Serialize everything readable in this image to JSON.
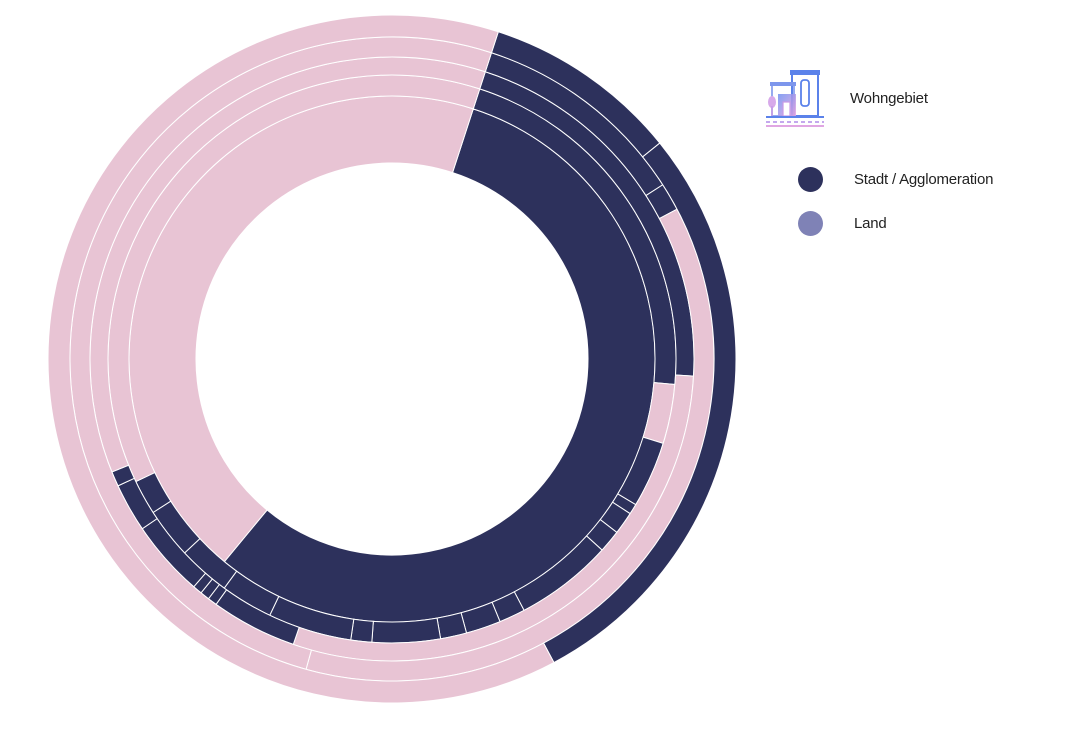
{
  "colors": {
    "dark": "#2d315c",
    "pink": "#e8c4d4",
    "land": "#7f82b6",
    "separator": "#ffffff"
  },
  "legend": {
    "title": "Wohngebiet",
    "icon": "city-buildings-icon",
    "items": [
      {
        "label": "Stadt / Agglomeration",
        "color": "#2d315c"
      },
      {
        "label": "Land",
        "color": "#7f82b6"
      }
    ]
  },
  "chart_data": {
    "type": "sunburst",
    "legend_position": "top-right",
    "rings": [
      {
        "segments": [
          {
            "value": 56.0,
            "color": "dark"
          },
          {
            "value": 44.0,
            "color": "pink"
          }
        ]
      },
      {
        "segments": [
          {
            "value": 21.6,
            "color": "dark"
          },
          {
            "value": 3.4,
            "color": "pink"
          },
          {
            "value": 3.8,
            "color": "dark"
          },
          {
            "value": 0.6,
            "color": "dark"
          },
          {
            "value": 1.3,
            "color": "dark"
          },
          {
            "value": 1.3,
            "color": "dark"
          },
          {
            "value": 5.6,
            "color": "dark"
          },
          {
            "value": 1.5,
            "color": "dark"
          },
          {
            "value": 2.0,
            "color": "dark"
          },
          {
            "value": 1.5,
            "color": "dark"
          },
          {
            "value": 3.9,
            "color": "dark"
          },
          {
            "value": 1.2,
            "color": "dark"
          },
          {
            "value": 4.8,
            "color": "dark"
          },
          {
            "value": 3.0,
            "color": "dark"
          },
          {
            "value": 3.0,
            "color": "dark"
          },
          {
            "value": 2.9,
            "color": "dark"
          },
          {
            "value": 2.0,
            "color": "dark"
          },
          {
            "value": 37.4,
            "color": "pink"
          }
        ]
      },
      {
        "segments": [
          {
            "value": 20.9,
            "color": "dark"
          },
          {
            "value": 29.4,
            "color": "pink"
          },
          {
            "value": 4.6,
            "color": "dark"
          },
          {
            "value": 0.5,
            "color": "dark"
          },
          {
            "value": 0.5,
            "color": "dark"
          },
          {
            "value": 0.5,
            "color": "dark"
          },
          {
            "value": 4.1,
            "color": "dark"
          },
          {
            "value": 2.6,
            "color": "dark"
          },
          {
            "value": 0.8,
            "color": "dark"
          },
          {
            "value": 36.1,
            "color": "pink"
          }
        ]
      },
      {
        "segments": [
          {
            "value": 10.9,
            "color": "dark"
          },
          {
            "value": 1.4,
            "color": "dark"
          },
          {
            "value": 37.0,
            "color": "pink"
          },
          {
            "value": 50.7,
            "color": "pink"
          }
        ]
      },
      {
        "segments": [
          {
            "value": 9.2,
            "color": "dark"
          },
          {
            "value": 28.0,
            "color": "dark"
          },
          {
            "value": 62.8,
            "color": "pink"
          }
        ]
      }
    ]
  }
}
